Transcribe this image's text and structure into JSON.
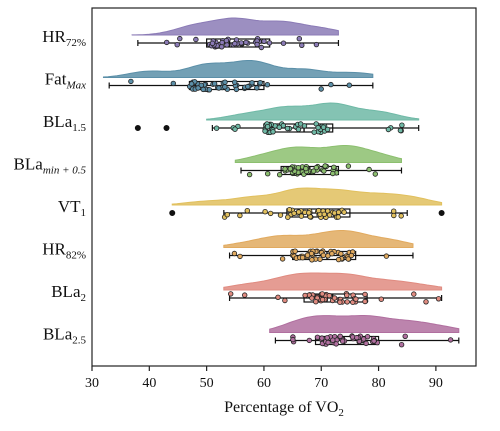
{
  "chart_data": {
    "type": "raincloud",
    "xlabel": "Percentage of VO",
    "xlabel_subscript": "2",
    "xlim": [
      30,
      97
    ],
    "xticks": [
      30,
      40,
      50,
      60,
      70,
      80,
      90
    ],
    "grid": false,
    "categories": [
      {
        "main": "HR",
        "sub": "72%",
        "italic_sub": false
      },
      {
        "main": "Fat",
        "sub": "Max",
        "italic_sub": true
      },
      {
        "main": "BLa",
        "sub": "1.5",
        "italic_sub": false
      },
      {
        "main": "BLa",
        "sub": "min + 0.5",
        "italic_sub": true
      },
      {
        "main": "VT",
        "sub": "1",
        "italic_sub": false
      },
      {
        "main": "HR",
        "sub": "82%",
        "italic_sub": false
      },
      {
        "main": "BLa",
        "sub": "2",
        "italic_sub": false
      },
      {
        "main": "BLa",
        "sub": "2.5",
        "italic_sub": false
      }
    ],
    "series": [
      {
        "color": "#8b7bb6",
        "box": {
          "whisker_low": 38,
          "q1": 50,
          "median": 54,
          "q3": 61,
          "whisker_high": 73
        },
        "density_range": [
          37,
          73
        ],
        "peaks": [
          [
            48,
            0.6
          ],
          [
            55,
            1.0
          ],
          [
            63,
            0.8
          ],
          [
            70,
            0.4
          ]
        ],
        "outliers": []
      },
      {
        "color": "#5b8fa8",
        "box": {
          "whisker_low": 33,
          "q1": 47,
          "median": 53,
          "q3": 60,
          "whisker_high": 79
        },
        "density_range": [
          32,
          79
        ],
        "peaks": [
          [
            40,
            0.4
          ],
          [
            50,
            0.8
          ],
          [
            58,
            1.0
          ],
          [
            67,
            0.5
          ],
          [
            76,
            0.3
          ]
        ],
        "outliers": []
      },
      {
        "color": "#6fb9a6",
        "box": {
          "whisker_low": 51,
          "q1": 60,
          "median": 67,
          "q3": 72,
          "whisker_high": 87
        },
        "density_range": [
          50,
          87
        ],
        "peaks": [
          [
            57,
            0.35
          ],
          [
            64,
            0.75
          ],
          [
            72,
            1.0
          ],
          [
            80,
            0.5
          ]
        ],
        "outliers": [
          38,
          43
        ]
      },
      {
        "color": "#8cbf6f",
        "box": {
          "whisker_low": 56,
          "q1": 63,
          "median": 68,
          "q3": 73,
          "whisker_high": 84
        },
        "density_range": [
          55,
          84
        ],
        "peaks": [
          [
            60,
            0.4
          ],
          [
            66,
            0.9
          ],
          [
            74,
            1.0
          ],
          [
            80,
            0.45
          ]
        ],
        "outliers": []
      },
      {
        "color": "#e1c05e",
        "box": {
          "whisker_low": 53,
          "q1": 64,
          "median": 70,
          "q3": 75,
          "whisker_high": 85
        },
        "density_range": [
          44,
          91
        ],
        "peaks": [
          [
            50,
            0.25
          ],
          [
            58,
            0.5
          ],
          [
            66,
            1.0
          ],
          [
            73,
            0.85
          ],
          [
            80,
            0.6
          ],
          [
            86,
            0.45
          ]
        ],
        "outliers": [
          44,
          91
        ]
      },
      {
        "color": "#e1aa5f",
        "box": {
          "whisker_low": 54,
          "q1": 65,
          "median": 71,
          "q3": 76,
          "whisker_high": 86
        },
        "density_range": [
          53,
          86
        ],
        "peaks": [
          [
            57,
            0.3
          ],
          [
            63,
            0.8
          ],
          [
            70,
            0.7
          ],
          [
            75,
            1.0
          ],
          [
            82,
            0.55
          ]
        ],
        "outliers": []
      },
      {
        "color": "#e08b80",
        "box": {
          "whisker_low": 54,
          "q1": 67,
          "median": 72,
          "q3": 78,
          "whisker_high": 91
        },
        "density_range": [
          53,
          91
        ],
        "peaks": [
          [
            57,
            0.4
          ],
          [
            64,
            0.8
          ],
          [
            69,
            0.85
          ],
          [
            75,
            1.0
          ],
          [
            82,
            0.6
          ],
          [
            88,
            0.3
          ]
        ],
        "outliers": []
      },
      {
        "color": "#b06f9f",
        "box": {
          "whisker_low": 62,
          "q1": 69,
          "median": 74,
          "q3": 80,
          "whisker_high": 94
        },
        "density_range": [
          61,
          94
        ],
        "peaks": [
          [
            66,
            0.6
          ],
          [
            71,
            0.85
          ],
          [
            78,
            1.0
          ],
          [
            85,
            0.65
          ],
          [
            91,
            0.35
          ]
        ],
        "outliers": []
      }
    ]
  }
}
